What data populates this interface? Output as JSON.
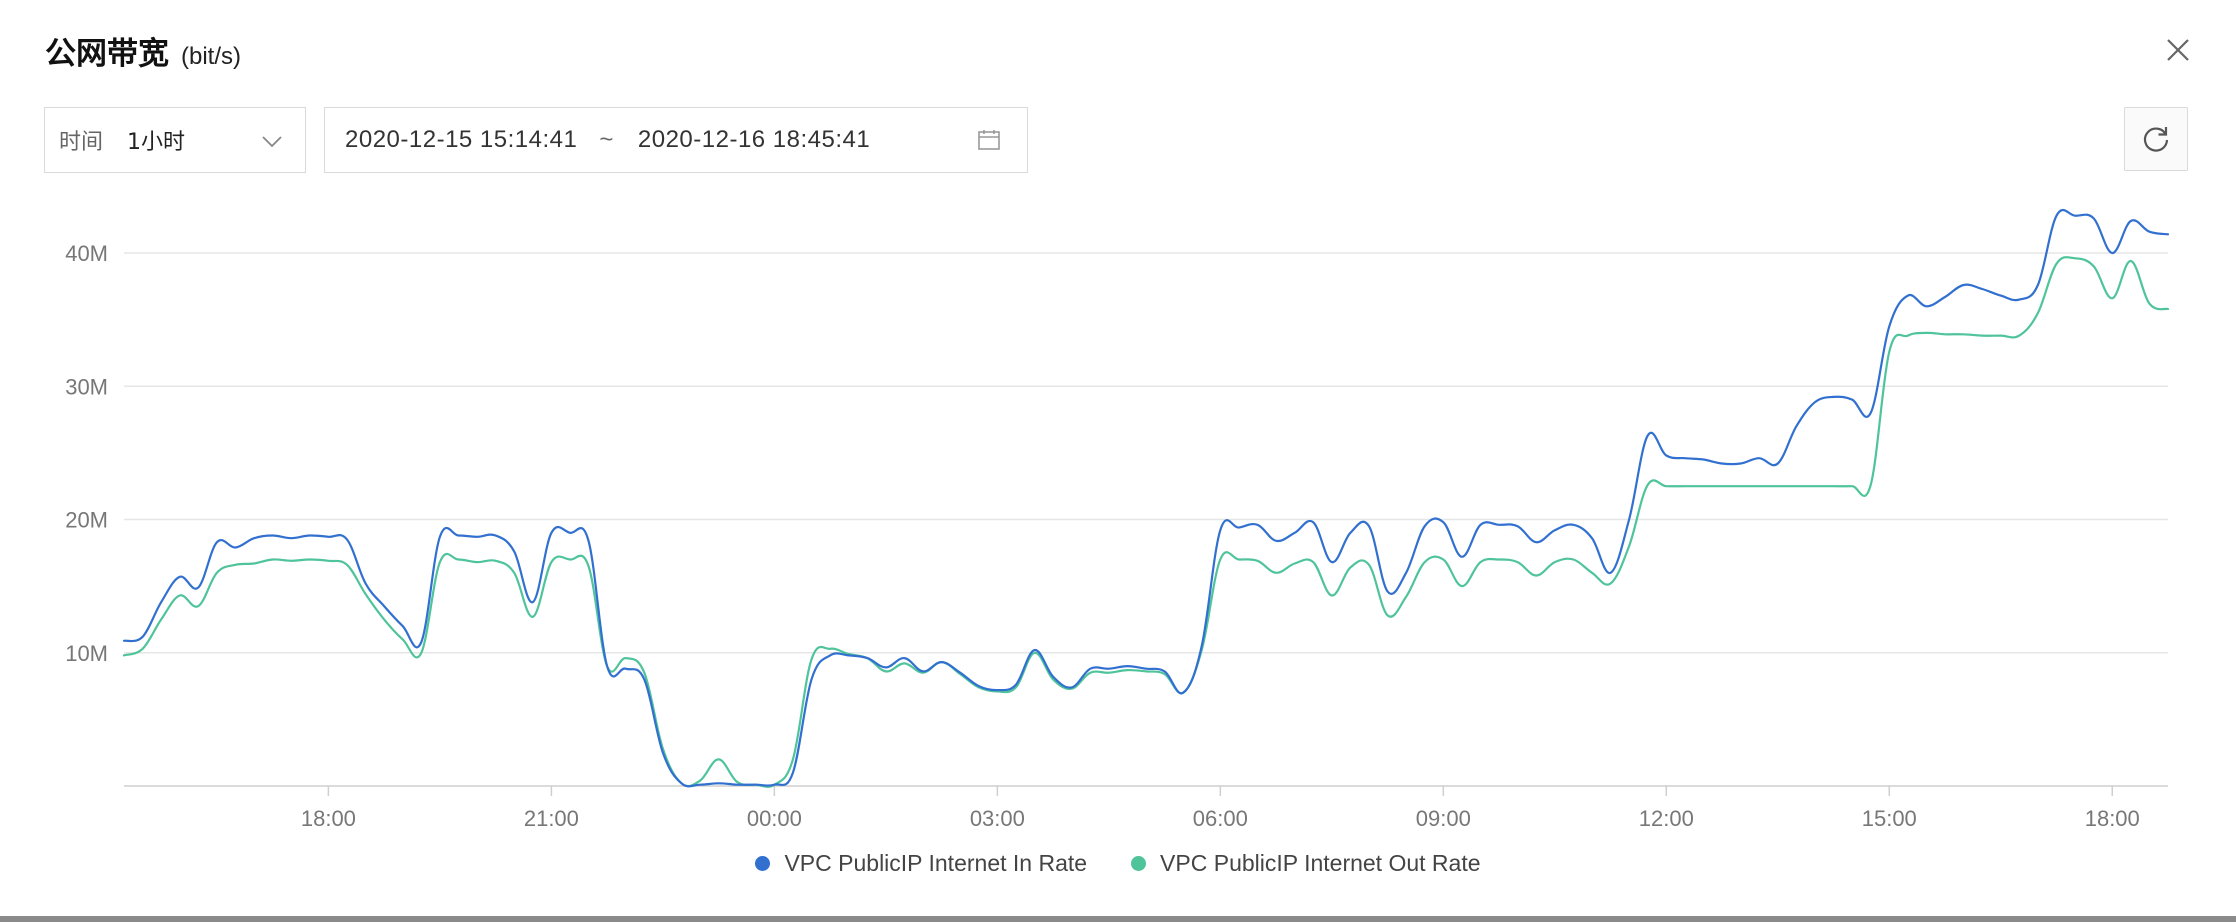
{
  "header": {
    "title": "公网带宽",
    "unit": "(bit/s)"
  },
  "controls": {
    "time_label": "时间",
    "granularity": "1小时",
    "start": "2020-12-15 15:14:41",
    "separator": "~",
    "end": "2020-12-16 18:45:41"
  },
  "icons": {
    "close": "close-icon",
    "chevron": "chevron-down-icon",
    "calendar": "calendar-icon",
    "refresh": "refresh-icon"
  },
  "chart_data": {
    "type": "line",
    "title": "公网带宽",
    "ylabel": "(bit/s)",
    "ylim": [
      0,
      40
    ],
    "yticks": [
      {
        "label": "10M",
        "value": 10
      },
      {
        "label": "20M",
        "value": 20
      },
      {
        "label": "30M",
        "value": 30
      },
      {
        "label": "40M",
        "value": 40
      }
    ],
    "xlim": [
      -8.75,
      18.75
    ],
    "xticks": [
      {
        "label": "18:00",
        "value": -6
      },
      {
        "label": "21:00",
        "value": -3
      },
      {
        "label": "00:00",
        "value": 0
      },
      {
        "label": "03:00",
        "value": 3
      },
      {
        "label": "06:00",
        "value": 6
      },
      {
        "label": "09:00",
        "value": 9
      },
      {
        "label": "12:00",
        "value": 12
      },
      {
        "label": "15:00",
        "value": 15
      },
      {
        "label": "18:00",
        "value": 18
      }
    ],
    "x_unit": "hours relative to 2020-12-16 00:00",
    "grid": true,
    "legend_position": "bottom-center",
    "series": [
      {
        "name": "VPC PublicIP Internet In Rate",
        "color": "#3270d0",
        "points": [
          [
            -8.75,
            10.9
          ],
          [
            -8.5,
            11.2
          ],
          [
            -8.25,
            13.8
          ],
          [
            -8.0,
            15.7
          ],
          [
            -7.75,
            14.9
          ],
          [
            -7.5,
            18.3
          ],
          [
            -7.25,
            17.9
          ],
          [
            -7.0,
            18.6
          ],
          [
            -6.75,
            18.8
          ],
          [
            -6.5,
            18.6
          ],
          [
            -6.25,
            18.8
          ],
          [
            -6.0,
            18.7
          ],
          [
            -5.75,
            18.5
          ],
          [
            -5.5,
            15.2
          ],
          [
            -5.25,
            13.5
          ],
          [
            -5.0,
            12.0
          ],
          [
            -4.75,
            10.8
          ],
          [
            -4.5,
            18.7
          ],
          [
            -4.25,
            18.8
          ],
          [
            -4.0,
            18.7
          ],
          [
            -3.75,
            18.8
          ],
          [
            -3.5,
            17.6
          ],
          [
            -3.25,
            13.8
          ],
          [
            -3.0,
            19.0
          ],
          [
            -2.75,
            19.0
          ],
          [
            -2.5,
            18.4
          ],
          [
            -2.25,
            9.0
          ],
          [
            -2.0,
            8.8
          ],
          [
            -1.75,
            8.0
          ],
          [
            -1.5,
            2.5
          ],
          [
            -1.25,
            0.2
          ],
          [
            -1.0,
            0.1
          ],
          [
            -0.75,
            0.2
          ],
          [
            -0.5,
            0.1
          ],
          [
            -0.25,
            0.1
          ],
          [
            0.0,
            0.1
          ],
          [
            0.25,
            1.0
          ],
          [
            0.5,
            8.0
          ],
          [
            0.75,
            9.8
          ],
          [
            1.0,
            9.8
          ],
          [
            1.25,
            9.6
          ],
          [
            1.5,
            8.9
          ],
          [
            1.75,
            9.6
          ],
          [
            2.0,
            8.6
          ],
          [
            2.25,
            9.3
          ],
          [
            2.5,
            8.5
          ],
          [
            2.75,
            7.5
          ],
          [
            3.0,
            7.2
          ],
          [
            3.25,
            7.6
          ],
          [
            3.5,
            10.2
          ],
          [
            3.75,
            8.2
          ],
          [
            4.0,
            7.4
          ],
          [
            4.25,
            8.8
          ],
          [
            4.5,
            8.8
          ],
          [
            4.75,
            9.0
          ],
          [
            5.0,
            8.8
          ],
          [
            5.25,
            8.6
          ],
          [
            5.5,
            7.0
          ],
          [
            5.75,
            10.5
          ],
          [
            6.0,
            19.2
          ],
          [
            6.25,
            19.4
          ],
          [
            6.5,
            19.6
          ],
          [
            6.75,
            18.4
          ],
          [
            7.0,
            19.0
          ],
          [
            7.25,
            19.8
          ],
          [
            7.5,
            16.8
          ],
          [
            7.75,
            19.0
          ],
          [
            8.0,
            19.5
          ],
          [
            8.25,
            14.6
          ],
          [
            8.5,
            16.0
          ],
          [
            8.75,
            19.5
          ],
          [
            9.0,
            19.8
          ],
          [
            9.25,
            17.2
          ],
          [
            9.5,
            19.6
          ],
          [
            9.75,
            19.6
          ],
          [
            10.0,
            19.5
          ],
          [
            10.25,
            18.3
          ],
          [
            10.5,
            19.2
          ],
          [
            10.75,
            19.6
          ],
          [
            11.0,
            18.6
          ],
          [
            11.25,
            16.0
          ],
          [
            11.5,
            20.0
          ],
          [
            11.75,
            26.3
          ],
          [
            12.0,
            24.8
          ],
          [
            12.25,
            24.6
          ],
          [
            12.5,
            24.5
          ],
          [
            12.75,
            24.2
          ],
          [
            13.0,
            24.2
          ],
          [
            13.25,
            24.6
          ],
          [
            13.5,
            24.2
          ],
          [
            13.75,
            27.0
          ],
          [
            14.0,
            28.8
          ],
          [
            14.25,
            29.2
          ],
          [
            14.5,
            29.0
          ],
          [
            14.75,
            28.0
          ],
          [
            15.0,
            34.5
          ],
          [
            15.25,
            36.8
          ],
          [
            15.5,
            36.0
          ],
          [
            15.75,
            36.7
          ],
          [
            16.0,
            37.6
          ],
          [
            16.25,
            37.3
          ],
          [
            16.5,
            36.8
          ],
          [
            16.75,
            36.5
          ],
          [
            17.0,
            37.6
          ],
          [
            17.25,
            42.8
          ],
          [
            17.5,
            42.8
          ],
          [
            17.75,
            42.6
          ],
          [
            18.0,
            40.0
          ],
          [
            18.25,
            42.4
          ],
          [
            18.5,
            41.6
          ],
          [
            18.75,
            41.4
          ]
        ]
      },
      {
        "name": "VPC PublicIP Internet Out Rate",
        "color": "#4fc49a",
        "points": [
          [
            -8.75,
            9.8
          ],
          [
            -8.5,
            10.3
          ],
          [
            -8.25,
            12.5
          ],
          [
            -8.0,
            14.3
          ],
          [
            -7.75,
            13.5
          ],
          [
            -7.5,
            16.0
          ],
          [
            -7.25,
            16.6
          ],
          [
            -7.0,
            16.7
          ],
          [
            -6.75,
            17.0
          ],
          [
            -6.5,
            16.9
          ],
          [
            -6.25,
            17.0
          ],
          [
            -6.0,
            16.9
          ],
          [
            -5.75,
            16.6
          ],
          [
            -5.5,
            14.4
          ],
          [
            -5.25,
            12.5
          ],
          [
            -5.0,
            11.0
          ],
          [
            -4.75,
            10.0
          ],
          [
            -4.5,
            16.8
          ],
          [
            -4.25,
            17.0
          ],
          [
            -4.0,
            16.8
          ],
          [
            -3.75,
            16.9
          ],
          [
            -3.5,
            16.0
          ],
          [
            -3.25,
            12.7
          ],
          [
            -3.0,
            16.8
          ],
          [
            -2.75,
            17.0
          ],
          [
            -2.5,
            16.5
          ],
          [
            -2.25,
            9.0
          ],
          [
            -2.0,
            9.6
          ],
          [
            -1.75,
            8.5
          ],
          [
            -1.5,
            2.8
          ],
          [
            -1.25,
            0.2
          ],
          [
            -1.0,
            0.4
          ],
          [
            -0.75,
            2.0
          ],
          [
            -0.5,
            0.3
          ],
          [
            -0.25,
            0.1
          ],
          [
            0.0,
            0.1
          ],
          [
            0.25,
            2.0
          ],
          [
            0.5,
            9.5
          ],
          [
            0.75,
            10.3
          ],
          [
            1.0,
            9.9
          ],
          [
            1.25,
            9.6
          ],
          [
            1.5,
            8.6
          ],
          [
            1.75,
            9.2
          ],
          [
            2.0,
            8.5
          ],
          [
            2.25,
            9.3
          ],
          [
            2.5,
            8.4
          ],
          [
            2.75,
            7.4
          ],
          [
            3.0,
            7.1
          ],
          [
            3.25,
            7.4
          ],
          [
            3.5,
            10.0
          ],
          [
            3.75,
            8.0
          ],
          [
            4.0,
            7.3
          ],
          [
            4.25,
            8.5
          ],
          [
            4.5,
            8.5
          ],
          [
            4.75,
            8.7
          ],
          [
            5.0,
            8.6
          ],
          [
            5.25,
            8.4
          ],
          [
            5.5,
            7.0
          ],
          [
            5.75,
            10.2
          ],
          [
            6.0,
            17.0
          ],
          [
            6.25,
            17.0
          ],
          [
            6.5,
            16.9
          ],
          [
            6.75,
            16.0
          ],
          [
            7.0,
            16.7
          ],
          [
            7.25,
            16.8
          ],
          [
            7.5,
            14.3
          ],
          [
            7.75,
            16.4
          ],
          [
            8.0,
            16.6
          ],
          [
            8.25,
            12.8
          ],
          [
            8.5,
            14.2
          ],
          [
            8.75,
            16.8
          ],
          [
            9.0,
            17.0
          ],
          [
            9.25,
            15.0
          ],
          [
            9.5,
            16.8
          ],
          [
            9.75,
            17.0
          ],
          [
            10.0,
            16.8
          ],
          [
            10.25,
            15.8
          ],
          [
            10.5,
            16.8
          ],
          [
            10.75,
            17.0
          ],
          [
            11.0,
            16.0
          ],
          [
            11.25,
            15.2
          ],
          [
            11.5,
            18.0
          ],
          [
            11.75,
            22.6
          ],
          [
            12.0,
            22.5
          ],
          [
            12.25,
            22.5
          ],
          [
            12.5,
            22.5
          ],
          [
            12.75,
            22.5
          ],
          [
            13.0,
            22.5
          ],
          [
            13.25,
            22.5
          ],
          [
            13.5,
            22.5
          ],
          [
            13.75,
            22.5
          ],
          [
            14.0,
            22.5
          ],
          [
            14.25,
            22.5
          ],
          [
            14.5,
            22.5
          ],
          [
            14.75,
            22.6
          ],
          [
            15.0,
            32.6
          ],
          [
            15.25,
            33.8
          ],
          [
            15.5,
            34.0
          ],
          [
            15.75,
            33.9
          ],
          [
            16.0,
            33.9
          ],
          [
            16.25,
            33.8
          ],
          [
            16.5,
            33.8
          ],
          [
            16.75,
            33.8
          ],
          [
            17.0,
            35.5
          ],
          [
            17.25,
            39.2
          ],
          [
            17.5,
            39.6
          ],
          [
            17.75,
            39.0
          ],
          [
            18.0,
            36.6
          ],
          [
            18.25,
            39.4
          ],
          [
            18.5,
            36.2
          ],
          [
            18.75,
            35.8
          ]
        ]
      }
    ]
  },
  "legend": {
    "items": [
      {
        "label": "VPC PublicIP Internet In Rate",
        "color": "#3270d0"
      },
      {
        "label": "VPC PublicIP Internet Out Rate",
        "color": "#4fc49a"
      }
    ]
  }
}
